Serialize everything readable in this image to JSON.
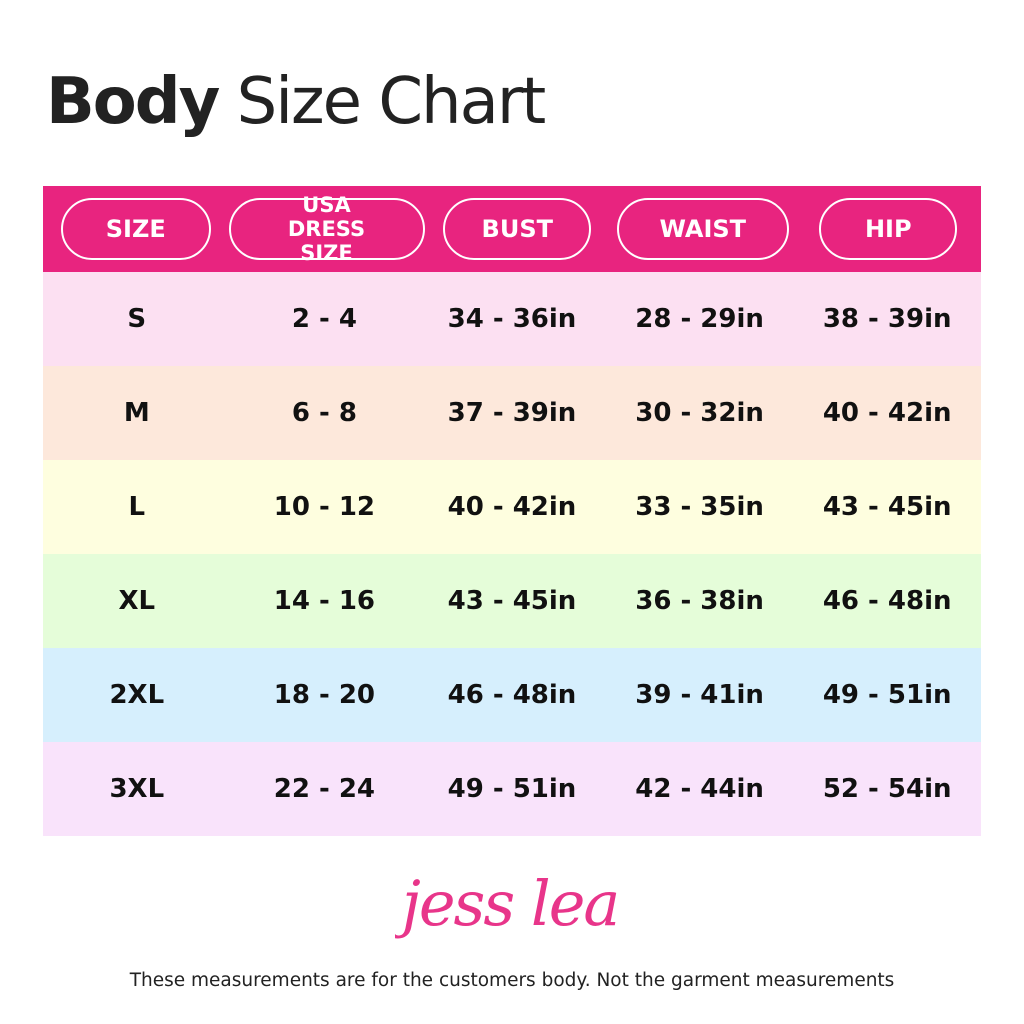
{
  "title": {
    "bold": "Body",
    "rest": "Size Chart"
  },
  "colors": {
    "header": "#E8247F",
    "rows": [
      "#FCE0F2",
      "#FDE8DB",
      "#FEFEDF",
      "#E5FDD9",
      "#D6EFFD",
      "#F9E3FB"
    ]
  },
  "headers": [
    "SIZE",
    "USA DRESS SIZE",
    "BUST",
    "WAIST",
    "HIP"
  ],
  "rows": [
    [
      "S",
      "2 - 4",
      "34 - 36in",
      "28 - 29in",
      "38 - 39in"
    ],
    [
      "M",
      "6 - 8",
      "37 - 39in",
      "30 - 32in",
      "40 - 42in"
    ],
    [
      "L",
      "10 - 12",
      "40 - 42in",
      "33 - 35in",
      "43 - 45in"
    ],
    [
      "XL",
      "14 - 16",
      "43 - 45in",
      "36 - 38in",
      "46 - 48in"
    ],
    [
      "2XL",
      "18 - 20",
      "46 - 48in",
      "39 - 41in",
      "49 - 51in"
    ],
    [
      "3XL",
      "22 - 24",
      "49 - 51in",
      "42 - 44in",
      "52 - 54in"
    ]
  ],
  "logo": "jess lea",
  "note": "These measurements are for the customers body. Not the garment measurements"
}
